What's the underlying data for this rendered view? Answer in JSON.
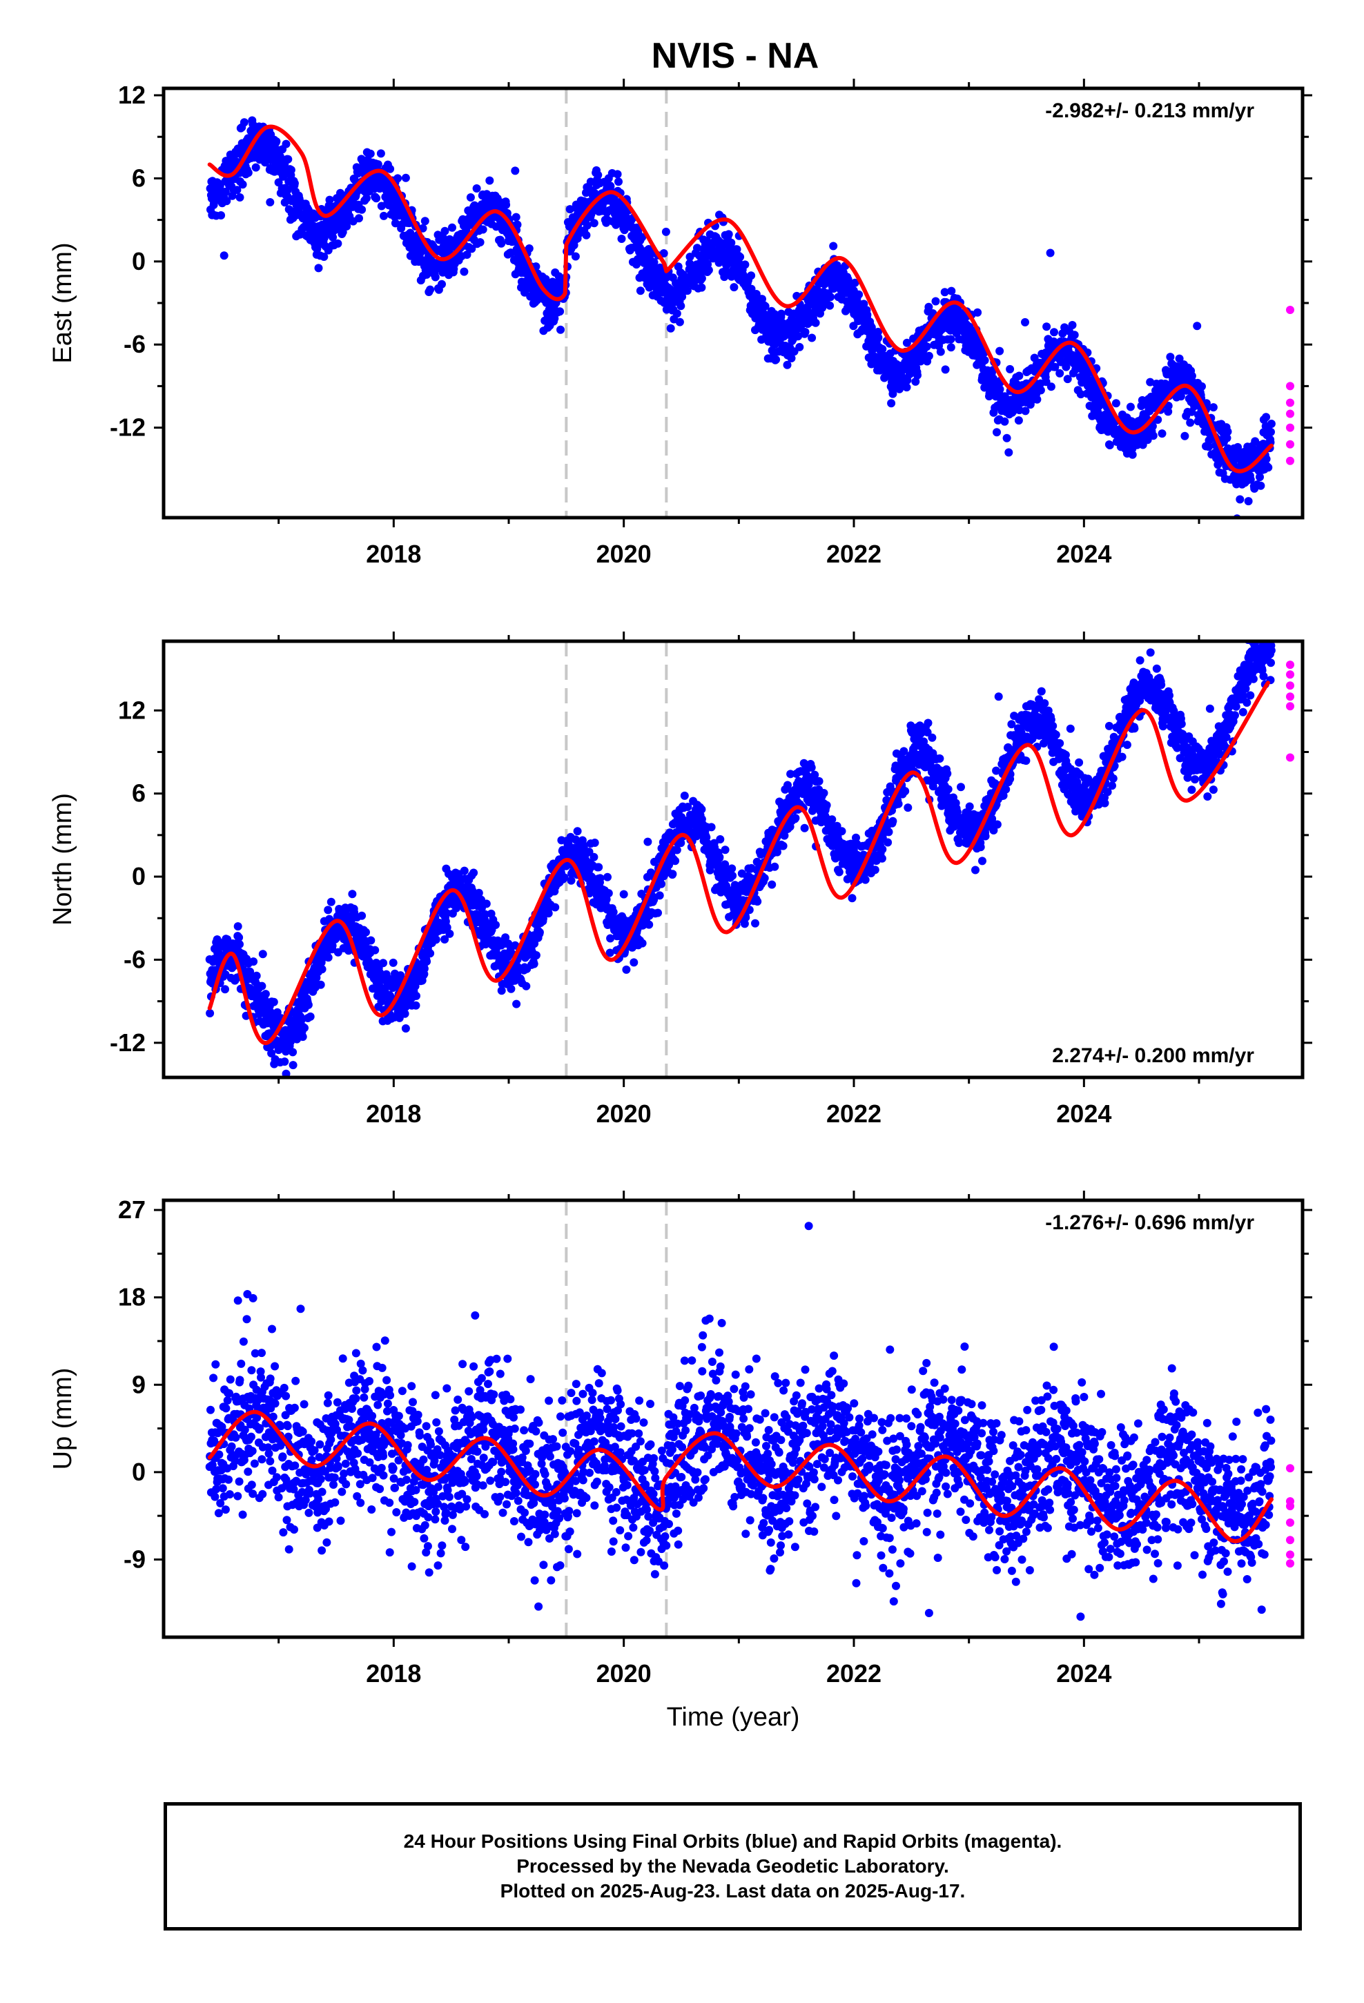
{
  "title": "NVIS - NA",
  "colors": {
    "final_orbits": "#0000ff",
    "rapid_orbits": "#ff00ff",
    "model": "#ff0000",
    "offset_lines": "#c8c8c8"
  },
  "footer": {
    "line1": "24 Hour Positions Using Final Orbits (blue) and Rapid Orbits (magenta).",
    "line2": "Processed by the Nevada Geodetic Laboratory.",
    "line3": "Plotted on 2025-Aug-23. Last data on 2025-Aug-17."
  },
  "chart_data": [
    {
      "type": "scatter",
      "panel": "east",
      "ylabel": "East (mm)",
      "xlabel": "",
      "rate_label": "-2.982+/- 0.213 mm/yr",
      "rate_label_position": "top-right",
      "xlim": [
        2016.0,
        2025.9
      ],
      "ylim": [
        -18.5,
        12.5
      ],
      "x_ticks": [
        2018,
        2020,
        2022,
        2024
      ],
      "y_ticks": [
        -12,
        -6,
        0,
        6,
        12
      ],
      "offset_epochs": [
        2019.5,
        2020.37
      ],
      "data_span": [
        2016.4,
        2025.63
      ],
      "series": [
        {
          "orbits": "final",
          "trend": {
            "at_2016_4": 7.0,
            "rate": -2.4,
            "step_at_2019_5": 3.5,
            "step_at_2020_37": -1.5
          },
          "annual": {
            "amplitude": 2.6,
            "peak_phase": 0.85
          },
          "scatter_sd": 0.9
        },
        {
          "orbits": "rapid",
          "x": [
            2025.6,
            2025.61,
            2025.62,
            2025.63,
            2025.64,
            2025.65,
            2025.66
          ],
          "values": [
            -3.5,
            -9.0,
            -10.2,
            -11.0,
            -12.0,
            -13.2,
            -14.4
          ]
        }
      ],
      "model_curve": {
        "x": [
          2016.4,
          2016.6,
          2016.9,
          2017.2,
          2017.4,
          2017.9,
          2018.4,
          2018.9,
          2019.3,
          2019.49,
          2019.5,
          2019.9,
          2020.3,
          2020.36,
          2020.37,
          2020.9,
          2021.4,
          2021.9,
          2022.4,
          2022.9,
          2023.4,
          2023.9,
          2024.4,
          2024.9,
          2025.3,
          2025.63
        ],
        "values": [
          7.0,
          6.3,
          9.7,
          7.8,
          3.3,
          6.5,
          0.2,
          3.6,
          -2.0,
          -2.3,
          1.2,
          5.0,
          0.5,
          -0.4,
          -0.7,
          3.0,
          -3.2,
          0.2,
          -6.4,
          -3.0,
          -9.4,
          -5.9,
          -12.3,
          -9.0,
          -15.0,
          -13.3
        ]
      }
    },
    {
      "type": "scatter",
      "panel": "north",
      "ylabel": "North (mm)",
      "xlabel": "",
      "rate_label": "2.274+/- 0.200 mm/yr",
      "rate_label_position": "bottom-right",
      "xlim": [
        2016.0,
        2025.9
      ],
      "ylim": [
        -14.5,
        17.0
      ],
      "x_ticks": [
        2018,
        2020,
        2022,
        2024
      ],
      "y_ticks": [
        -12,
        -6,
        0,
        6,
        12
      ],
      "offset_epochs": [
        2019.5,
        2020.37
      ],
      "data_span": [
        2016.4,
        2025.63
      ],
      "series": [
        {
          "orbits": "final",
          "trend": {
            "at_2016_4": -9.5,
            "rate": 2.42,
            "step_at_2019_5": 0.0,
            "step_at_2020_37": 0.0
          },
          "annual": {
            "amplitude": 3.4,
            "peak_phase": 0.55
          },
          "scatter_sd": 0.9
        },
        {
          "orbits": "rapid",
          "x": [
            2025.6,
            2025.61,
            2025.62,
            2025.63,
            2025.64,
            2025.65
          ],
          "values": [
            15.3,
            14.6,
            13.8,
            13.0,
            12.3,
            8.6
          ]
        }
      ],
      "model_curve": {
        "x": [
          2016.4,
          2016.6,
          2016.9,
          2017.5,
          2017.9,
          2018.5,
          2018.9,
          2019.5,
          2019.9,
          2020.5,
          2020.9,
          2021.5,
          2021.9,
          2022.5,
          2022.9,
          2023.5,
          2023.9,
          2024.5,
          2024.9,
          2025.6
        ],
        "values": [
          -9.5,
          -5.6,
          -12.0,
          -3.2,
          -10.0,
          -1.0,
          -7.5,
          1.2,
          -6.0,
          3.0,
          -4.0,
          5.0,
          -1.5,
          7.5,
          1.0,
          9.5,
          3.0,
          12.0,
          5.5,
          14.0
        ]
      }
    },
    {
      "type": "scatter",
      "panel": "up",
      "ylabel": "Up (mm)",
      "xlabel": "Time (year)",
      "rate_label": "-1.276+/- 0.696 mm/yr",
      "rate_label_position": "top-right",
      "xlim": [
        2016.0,
        2025.9
      ],
      "ylim": [
        -17.0,
        28.0
      ],
      "x_ticks": [
        2018,
        2020,
        2022,
        2024
      ],
      "y_ticks": [
        -9,
        0,
        9,
        18,
        27
      ],
      "offset_epochs": [
        2019.5,
        2020.37
      ],
      "data_span": [
        2016.4,
        2025.63
      ],
      "series": [
        {
          "orbits": "final",
          "trend": {
            "at_2016_4": 3.5,
            "rate": -0.95,
            "step_at_2019_5": 0.0,
            "step_at_2020_37": 3.0
          },
          "annual": {
            "amplitude": 2.9,
            "peak_phase": 0.8
          },
          "scatter_sd": 3.8
        },
        {
          "orbits": "rapid",
          "x": [
            2025.6,
            2025.61,
            2025.62,
            2025.63,
            2025.64,
            2025.65,
            2025.66
          ],
          "values": [
            0.4,
            -3.0,
            -3.5,
            -5.2,
            -7.0,
            -8.5,
            -9.4
          ]
        }
      ],
      "model_curve": {
        "x": [
          2016.4,
          2016.8,
          2017.3,
          2017.8,
          2018.3,
          2018.8,
          2019.3,
          2019.8,
          2020.3,
          2020.37,
          2020.8,
          2021.3,
          2021.8,
          2022.3,
          2022.8,
          2023.3,
          2023.8,
          2024.3,
          2024.8,
          2025.3,
          2025.63
        ],
        "values": [
          1.5,
          6.2,
          0.6,
          5.0,
          -0.8,
          3.5,
          -2.4,
          2.3,
          -3.8,
          -0.5,
          4.0,
          -1.5,
          2.8,
          -3.0,
          1.6,
          -4.5,
          0.4,
          -5.9,
          -0.9,
          -7.1,
          -2.8
        ]
      }
    }
  ]
}
